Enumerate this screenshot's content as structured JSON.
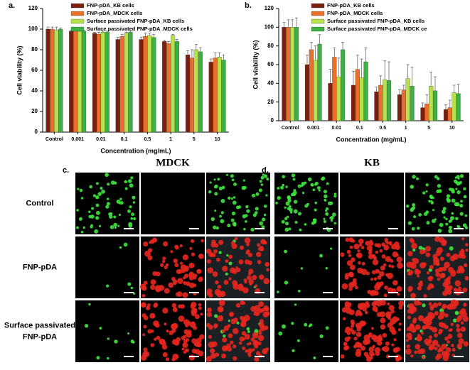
{
  "chart_data": [
    {
      "type": "bar",
      "panel_label": "a.",
      "xlabel": "Concentration (mg/mL)",
      "ylabel": "Cell viability (%)",
      "categories": [
        "Control",
        "0.001",
        "0.01",
        "0.1",
        "0.5",
        "1",
        "5",
        "10"
      ],
      "series": [
        {
          "name": "FNP-pDA_KB cells",
          "color": "#7b1f0e",
          "values": [
            100,
            98,
            96,
            90,
            90,
            88,
            75,
            68
          ],
          "errors": [
            2,
            1,
            1,
            2,
            2,
            1,
            4,
            3
          ]
        },
        {
          "name": "FNP-pDA_MDCK cells",
          "color": "#e8702a",
          "values": [
            100,
            98,
            95,
            93,
            93,
            86,
            72,
            72
          ],
          "errors": [
            2,
            1,
            2,
            2,
            3,
            2,
            8,
            5
          ]
        },
        {
          "name": "Surface passivated FNP-pDA_KB cells",
          "color": "#b8e04c",
          "values": [
            99,
            98,
            97,
            96,
            94,
            94,
            80,
            73
          ],
          "errors": [
            3,
            1,
            1,
            1,
            2,
            1,
            5,
            4
          ]
        },
        {
          "name": "Surface passivated FNP-pDA_MDCK cells",
          "color": "#3cb043",
          "values": [
            100,
            98,
            97,
            97,
            92,
            88,
            78,
            70
          ],
          "errors": [
            1,
            1,
            1,
            1,
            3,
            2,
            4,
            5
          ]
        }
      ],
      "ylim": [
        0,
        120
      ],
      "yticks": [
        0,
        20,
        40,
        60,
        80,
        100,
        120
      ]
    },
    {
      "type": "bar",
      "panel_label": "b.",
      "xlabel": "Concentration (mg/mL)",
      "ylabel": "Cell viability (%)",
      "categories": [
        "Control",
        "0.001",
        "0.01",
        "0.1",
        "0.5",
        "1",
        "5",
        "10"
      ],
      "series": [
        {
          "name": "FNP-pDA_KB cells",
          "color": "#7b1f0e",
          "values": [
            100,
            60,
            40,
            38,
            31,
            28,
            14,
            12
          ],
          "errors": [
            5,
            10,
            15,
            15,
            5,
            5,
            5,
            5
          ]
        },
        {
          "name": "FNP-pDA_MDCK cells",
          "color": "#e8702a",
          "values": [
            100,
            76,
            68,
            55,
            38,
            33,
            18,
            14
          ],
          "errors": [
            8,
            8,
            10,
            15,
            10,
            5,
            10,
            8
          ]
        },
        {
          "name": "Surface passivated FNP-pDA_KB cells",
          "color": "#b8e04c",
          "values": [
            100,
            65,
            47,
            46,
            44,
            45,
            37,
            30
          ],
          "errors": [
            8,
            15,
            20,
            20,
            20,
            15,
            15,
            8
          ]
        },
        {
          "name": "Surface passivated FNP-pDA_MDCK ce",
          "color": "#3cb043",
          "values": [
            100,
            82,
            76,
            63,
            43,
            37,
            32,
            29
          ],
          "errors": [
            10,
            10,
            8,
            15,
            20,
            20,
            15,
            10
          ]
        }
      ],
      "ylim": [
        0,
        120
      ],
      "yticks": [
        0,
        20,
        40,
        60,
        80,
        100,
        120
      ]
    }
  ],
  "images": {
    "panels": [
      {
        "label": "c.",
        "title": "MDCK"
      },
      {
        "label": "d.",
        "title": "KB"
      }
    ],
    "rows": [
      [
        "Control"
      ],
      [
        "FNP-pDA"
      ],
      [
        "Surface passivated",
        "FNP-pDA"
      ]
    ]
  }
}
